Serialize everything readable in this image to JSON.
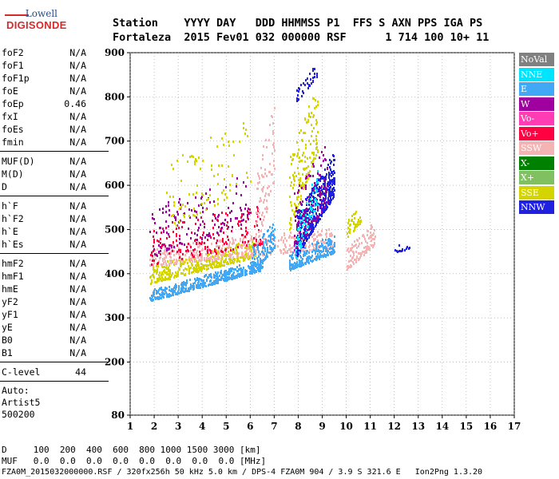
{
  "logo": {
    "top": "Lowell",
    "bottom": "DIGISONDE"
  },
  "header": {
    "labels": "Station    YYYY DAY   DDD HHMMSS P1  FFS S AXN PPS IGA PS",
    "values": "Fortaleza  2015 Fev01 032 000000 RSF      1 714 100 10+ 11"
  },
  "params": {
    "group1": [
      {
        "name": "foF2",
        "value": "N/A"
      },
      {
        "name": "foF1",
        "value": "N/A"
      },
      {
        "name": "foF1p",
        "value": "N/A"
      },
      {
        "name": "foE",
        "value": "N/A"
      },
      {
        "name": "foEp",
        "value": "0.46"
      },
      {
        "name": "fxI",
        "value": "N/A"
      },
      {
        "name": "foEs",
        "value": "N/A"
      },
      {
        "name": "fmin",
        "value": "N/A"
      }
    ],
    "group2": [
      {
        "name": "MUF(D)",
        "value": "N/A"
      },
      {
        "name": "M(D)",
        "value": "N/A"
      },
      {
        "name": "D",
        "value": "N/A"
      }
    ],
    "group3": [
      {
        "name": "h`F",
        "value": "N/A"
      },
      {
        "name": "h`F2",
        "value": "N/A"
      },
      {
        "name": "h`E",
        "value": "N/A"
      },
      {
        "name": "h`Es",
        "value": "N/A"
      }
    ],
    "group4": [
      {
        "name": "hmF2",
        "value": "N/A"
      },
      {
        "name": "hmF1",
        "value": "N/A"
      },
      {
        "name": "hmE",
        "value": "N/A"
      },
      {
        "name": "yF2",
        "value": "N/A"
      },
      {
        "name": "yF1",
        "value": "N/A"
      },
      {
        "name": "yE",
        "value": "N/A"
      },
      {
        "name": "B0",
        "value": "N/A"
      },
      {
        "name": "B1",
        "value": "N/A"
      }
    ],
    "clevel": {
      "name": "C-level",
      "value": "44"
    },
    "auto": [
      "Auto:",
      "Artist5",
      "500200"
    ]
  },
  "bottom": {
    "d_row": "D     100  200  400  600  800 1000 1500 3000 [km]",
    "muf_row": "MUF   0.0  0.0  0.0  0.0  0.0  0.0  0.0  0.0 [MHz]",
    "footer": "FZA0M_2015032000000.RSF / 320fx256h 50 kHz 5.0 km / DPS-4 FZA0M 904 / 3.9 S 321.6 E   Ion2Png 1.3.20"
  },
  "chart_data": {
    "type": "scatter",
    "x_ticks": [
      1,
      2,
      3,
      4,
      5,
      6,
      7,
      8,
      9,
      10,
      11,
      12,
      13,
      14,
      15,
      16,
      17
    ],
    "y_ticks": [
      80,
      200,
      300,
      400,
      500,
      600,
      700,
      800,
      900
    ],
    "xlim": [
      1,
      17
    ],
    "ylim": [
      80,
      900
    ],
    "grid": "dotted",
    "legend_position": "right",
    "legend": [
      {
        "name": "NoVal",
        "color": "#808080"
      },
      {
        "name": "NNE",
        "color": "#00e5ff"
      },
      {
        "name": "E",
        "color": "#40a8f5"
      },
      {
        "name": "W",
        "color": "#a000a0"
      },
      {
        "name": "Vo-",
        "color": "#ff3cb4"
      },
      {
        "name": "Vo+",
        "color": "#ff0040"
      },
      {
        "name": "SSW",
        "color": "#f5b4b4"
      },
      {
        "name": "X-",
        "color": "#008000"
      },
      {
        "name": "X+",
        "color": "#80c060"
      },
      {
        "name": "SSE",
        "color": "#d4d400"
      },
      {
        "name": "NNW",
        "color": "#2020e0"
      }
    ],
    "clusters": [
      {
        "series": "E",
        "x": [
          1.8,
          6.5
        ],
        "y_base": [
          340,
          410
        ],
        "spread": 25,
        "count": 450
      },
      {
        "series": "SSE",
        "x": [
          1.8,
          6.2
        ],
        "y_base": [
          380,
          440
        ],
        "spread": 40,
        "count": 380
      },
      {
        "series": "SSW",
        "x": [
          1.8,
          9.5
        ],
        "y_base": [
          420,
          460
        ],
        "spread": 45,
        "count": 420
      },
      {
        "series": "Vo+",
        "x": [
          1.8,
          6.5
        ],
        "y_base": [
          420,
          470
        ],
        "spread": 90,
        "count": 200
      },
      {
        "series": "W",
        "x": [
          1.8,
          6.0
        ],
        "y_base": [
          440,
          520
        ],
        "spread": 110,
        "count": 140
      },
      {
        "series": "SSE",
        "x": [
          2.5,
          6.0
        ],
        "y_base": [
          500,
          600
        ],
        "spread": 160,
        "count": 90
      },
      {
        "series": "E",
        "x": [
          6.0,
          7.0
        ],
        "y_base": [
          400,
          460
        ],
        "spread": 60,
        "count": 120
      },
      {
        "series": "SSW",
        "x": [
          6.2,
          7.0
        ],
        "y_base": [
          440,
          620
        ],
        "spread": 180,
        "count": 90
      },
      {
        "series": "E",
        "x": [
          7.6,
          9.5
        ],
        "y_base": [
          410,
          450
        ],
        "spread": 40,
        "count": 220
      },
      {
        "series": "NNW",
        "x": [
          7.9,
          9.5
        ],
        "y_base": [
          440,
          580
        ],
        "spread": 100,
        "count": 480
      },
      {
        "series": "SSE",
        "x": [
          7.6,
          8.8
        ],
        "y_base": [
          500,
          680
        ],
        "spread": 160,
        "count": 160
      },
      {
        "series": "W",
        "x": [
          7.8,
          9.2
        ],
        "y_base": [
          450,
          560
        ],
        "spread": 140,
        "count": 130
      },
      {
        "series": "NNE",
        "x": [
          7.8,
          8.8
        ],
        "y_base": [
          420,
          560
        ],
        "spread": 80,
        "count": 70
      },
      {
        "series": "NNW",
        "x": [
          7.9,
          8.8
        ],
        "y_base": [
          790,
          850
        ],
        "spread": 30,
        "count": 40
      },
      {
        "series": "SSW",
        "x": [
          10.0,
          11.2
        ],
        "y_base": [
          410,
          470
        ],
        "spread": 50,
        "count": 110
      },
      {
        "series": "SSE",
        "x": [
          10.0,
          10.6
        ],
        "y_base": [
          480,
          520
        ],
        "spread": 40,
        "count": 40
      },
      {
        "series": "NNW",
        "x": [
          12.0,
          12.7
        ],
        "y_base": [
          450,
          460
        ],
        "spread": 15,
        "count": 14
      }
    ]
  }
}
